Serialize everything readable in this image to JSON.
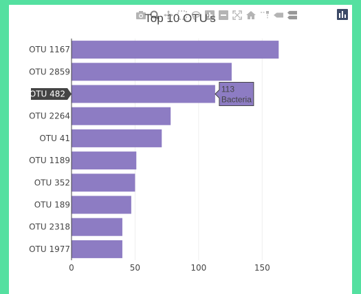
{
  "colors": {
    "page_background": "#54e0a0",
    "bar_fill": "#8d7cc3",
    "grid": "#eeeeee",
    "hover_axis_label_bg": "#444444"
  },
  "modebar": {
    "icons": [
      "camera-icon",
      "zoom-icon",
      "pan-icon",
      "box-select-icon",
      "lasso-icon",
      "zoom-in-icon",
      "zoom-out-icon",
      "autoscale-icon",
      "home-icon",
      "spike-lines-icon",
      "hover-closest-icon",
      "hover-compare-icon",
      "plotly-logo-icon"
    ]
  },
  "chart_data": {
    "type": "bar",
    "orientation": "horizontal",
    "title": "Top 10 OTU's",
    "xlabel": "",
    "ylabel": "",
    "categories": [
      "OTU 1167",
      "OTU 2859",
      "OTU 482",
      "OTU 2264",
      "OTU 41",
      "OTU 1189",
      "OTU 352",
      "OTU 189",
      "OTU 2318",
      "OTU 1977"
    ],
    "values": [
      163,
      126,
      113,
      78,
      71,
      51,
      50,
      47,
      40,
      40
    ],
    "x_ticks": [
      0,
      50,
      100,
      150
    ],
    "xlim": [
      0,
      167
    ],
    "grid": "vertical",
    "hover": {
      "category_index": 2,
      "category_label": "OTU 482",
      "value_label": "113",
      "text_label": "Bacteria"
    }
  }
}
